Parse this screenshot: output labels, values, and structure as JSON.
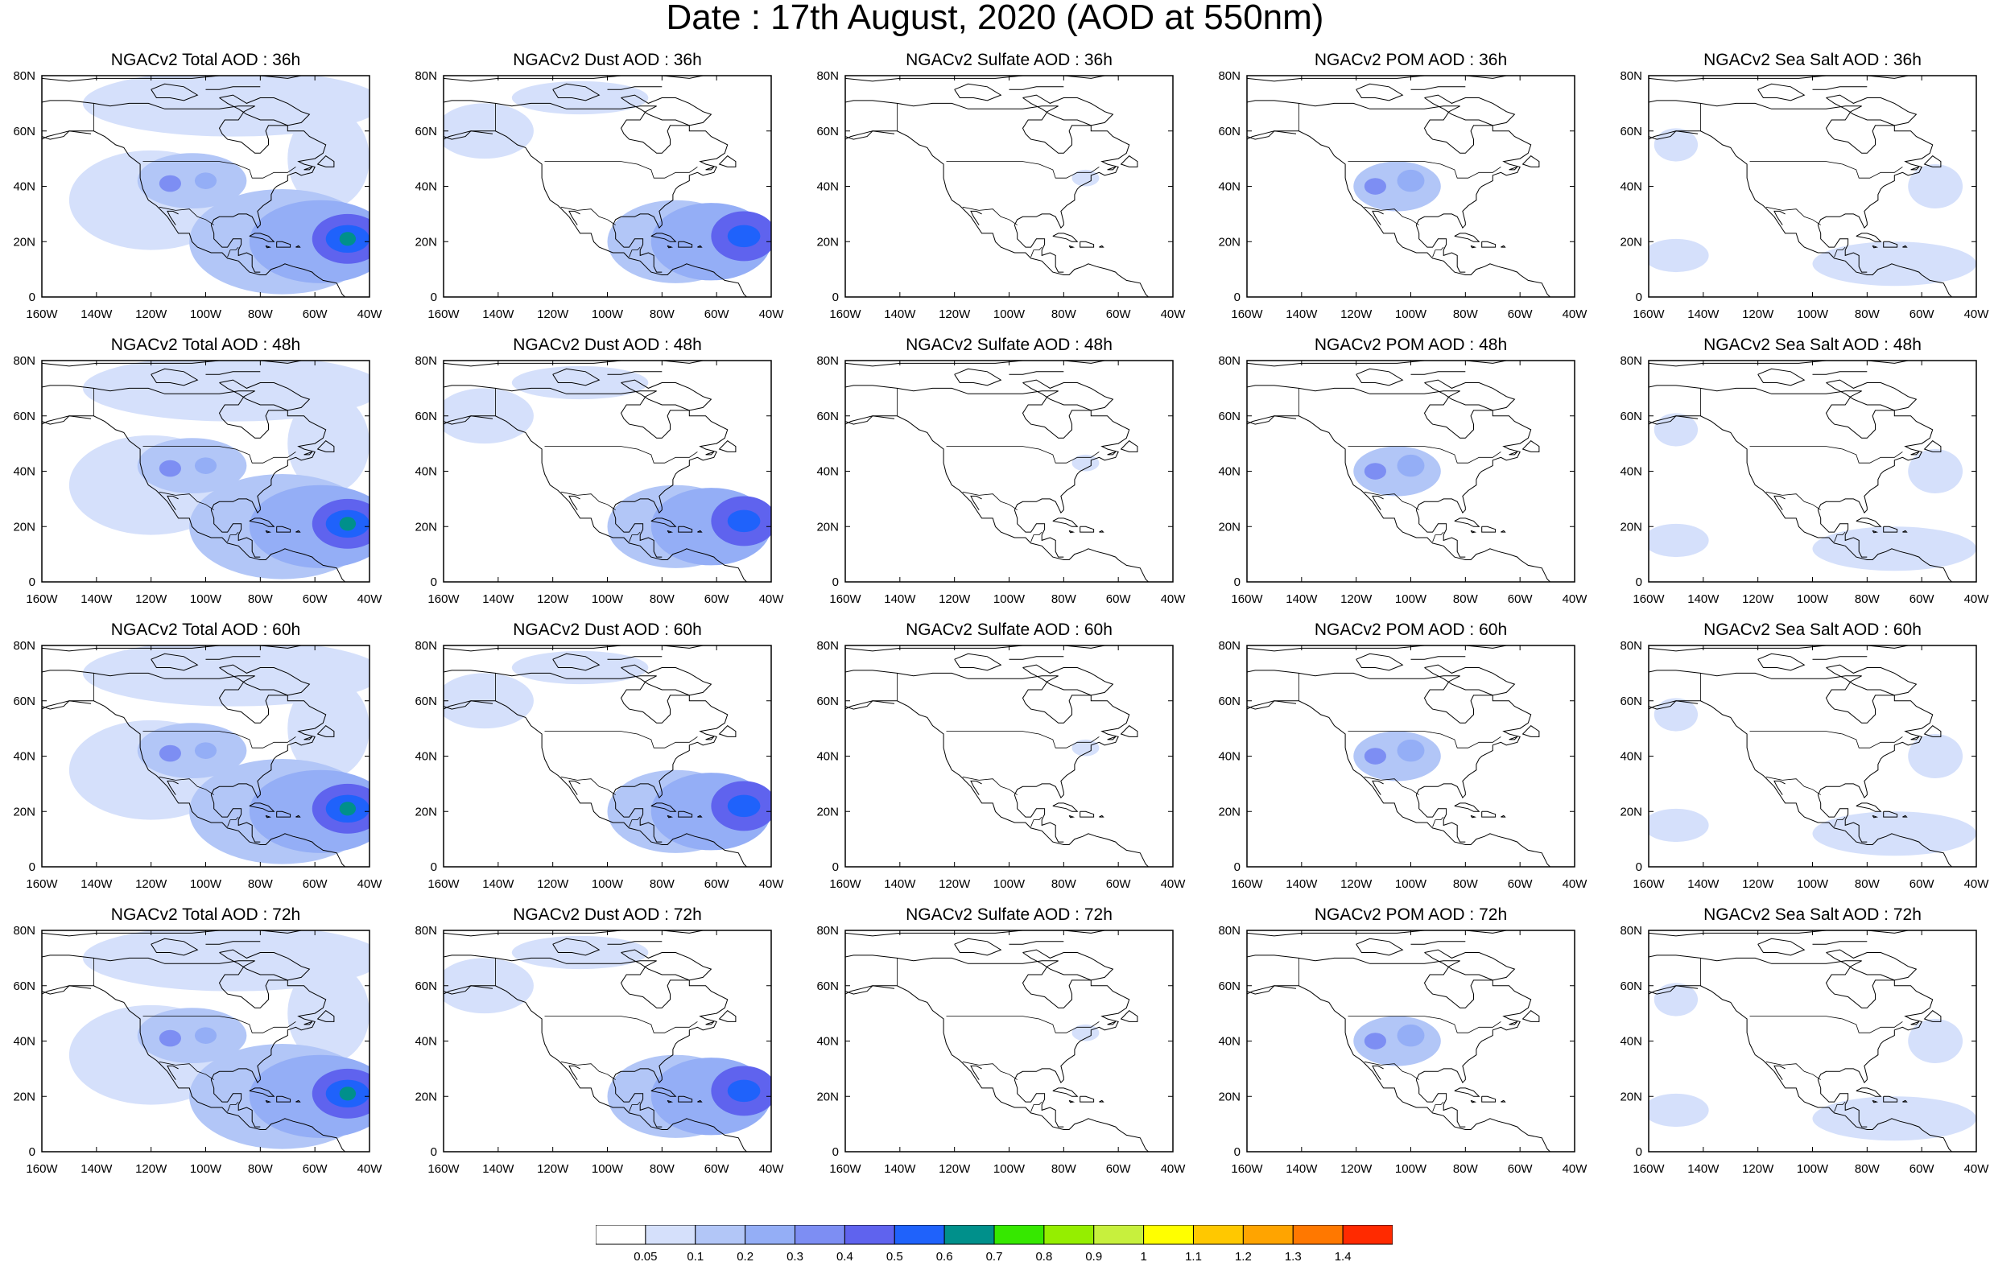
{
  "figure": {
    "title": "Date : 17th August, 2020 (AOD at 550nm)"
  },
  "map": {
    "lon_range": [
      -160,
      -40
    ],
    "lat_range": [
      0,
      80
    ],
    "lon_ticks": [
      "160W",
      "140W",
      "120W",
      "100W",
      "80W",
      "60W",
      "40W"
    ],
    "lat_ticks": [
      "0",
      "20N",
      "40N",
      "60N",
      "80N"
    ],
    "coastline_color": "#000000",
    "no_data_color": "#ffffff"
  },
  "panels": [
    {
      "title": "NGACv2 Total AOD : 36h",
      "field": "total",
      "forecast_hour": 36
    },
    {
      "title": "NGACv2 Dust AOD : 36h",
      "field": "dust",
      "forecast_hour": 36
    },
    {
      "title": "NGACv2 Sulfate AOD : 36h",
      "field": "sulfate",
      "forecast_hour": 36
    },
    {
      "title": "NGACv2 POM AOD : 36h",
      "field": "pom",
      "forecast_hour": 36
    },
    {
      "title": "NGACv2 Sea Salt AOD : 36h",
      "field": "seasalt",
      "forecast_hour": 36
    },
    {
      "title": "NGACv2 Total AOD : 48h",
      "field": "total",
      "forecast_hour": 48
    },
    {
      "title": "NGACv2 Dust AOD : 48h",
      "field": "dust",
      "forecast_hour": 48
    },
    {
      "title": "NGACv2 Sulfate AOD : 48h",
      "field": "sulfate",
      "forecast_hour": 48
    },
    {
      "title": "NGACv2 POM AOD : 48h",
      "field": "pom",
      "forecast_hour": 48
    },
    {
      "title": "NGACv2 Sea Salt AOD : 48h",
      "field": "seasalt",
      "forecast_hour": 48
    },
    {
      "title": "NGACv2 Total AOD : 60h",
      "field": "total",
      "forecast_hour": 60
    },
    {
      "title": "NGACv2 Dust AOD : 60h",
      "field": "dust",
      "forecast_hour": 60
    },
    {
      "title": "NGACv2 Sulfate AOD : 60h",
      "field": "sulfate",
      "forecast_hour": 60
    },
    {
      "title": "NGACv2 POM AOD : 60h",
      "field": "pom",
      "forecast_hour": 60
    },
    {
      "title": "NGACv2 Sea Salt AOD : 60h",
      "field": "seasalt",
      "forecast_hour": 60
    },
    {
      "title": "NGACv2 Total AOD : 72h",
      "field": "total",
      "forecast_hour": 72
    },
    {
      "title": "NGACv2 Dust AOD : 72h",
      "field": "dust",
      "forecast_hour": 72
    },
    {
      "title": "NGACv2 Sulfate AOD : 72h",
      "field": "sulfate",
      "forecast_hour": 72
    },
    {
      "title": "NGACv2 POM AOD : 72h",
      "field": "pom",
      "forecast_hour": 72
    },
    {
      "title": "NGACv2 Sea Salt  AOD : 72h",
      "field": "seasalt",
      "forecast_hour": 72
    }
  ],
  "colorbar": {
    "labels": [
      "0.05",
      "0.1",
      "0.2",
      "0.3",
      "0.4",
      "0.5",
      "0.6",
      "0.7",
      "0.8",
      "0.9",
      "1",
      "1.1",
      "1.2",
      "1.3",
      "1.4"
    ],
    "colors": [
      "#ffffff",
      "#d5e0fb",
      "#b2c6f7",
      "#94aef6",
      "#7d8ef3",
      "#5f63ee",
      "#1f62fb",
      "#00908b",
      "#36e800",
      "#95ee00",
      "#c7f03d",
      "#ffff00",
      "#ffc800",
      "#ffa400",
      "#ff7800",
      "#ff2a00"
    ]
  },
  "features": {
    "total": [
      {
        "lon": -48,
        "lat": 21,
        "rx": 13,
        "ry": 9,
        "level": 5
      },
      {
        "lon": -48,
        "lat": 21,
        "rx": 8,
        "ry": 5,
        "level": 6
      },
      {
        "lon": -48,
        "lat": 21,
        "rx": 3,
        "ry": 2.5,
        "level": 7
      },
      {
        "lon": -58,
        "lat": 20,
        "rx": 26,
        "ry": 15,
        "level": 3
      },
      {
        "lon": -72,
        "lat": 20,
        "rx": 34,
        "ry": 19,
        "level": 2
      },
      {
        "lon": -105,
        "lat": 42,
        "rx": 20,
        "ry": 10,
        "level": 2
      },
      {
        "lon": -113,
        "lat": 41,
        "rx": 4,
        "ry": 3,
        "level": 4
      },
      {
        "lon": -100,
        "lat": 42,
        "rx": 4,
        "ry": 3,
        "level": 3
      },
      {
        "lon": -120,
        "lat": 35,
        "rx": 30,
        "ry": 18,
        "level": 1
      },
      {
        "lon": -90,
        "lat": 70,
        "rx": 55,
        "ry": 12,
        "level": 1
      },
      {
        "lon": -55,
        "lat": 50,
        "rx": 15,
        "ry": 18,
        "level": 1
      }
    ],
    "dust": [
      {
        "lon": -50,
        "lat": 22,
        "rx": 12,
        "ry": 9,
        "level": 5
      },
      {
        "lon": -50,
        "lat": 22,
        "rx": 6,
        "ry": 4,
        "level": 6
      },
      {
        "lon": -62,
        "lat": 20,
        "rx": 22,
        "ry": 14,
        "level": 3
      },
      {
        "lon": -75,
        "lat": 20,
        "rx": 25,
        "ry": 15,
        "level": 2
      },
      {
        "lon": -145,
        "lat": 60,
        "rx": 18,
        "ry": 10,
        "level": 1
      },
      {
        "lon": -110,
        "lat": 72,
        "rx": 25,
        "ry": 6,
        "level": 1
      }
    ],
    "sulfate": [
      {
        "lon": -72,
        "lat": 43,
        "rx": 5,
        "ry": 3,
        "level": 1
      }
    ],
    "pom": [
      {
        "lon": -105,
        "lat": 40,
        "rx": 16,
        "ry": 9,
        "level": 2
      },
      {
        "lon": -113,
        "lat": 40,
        "rx": 4,
        "ry": 3,
        "level": 4
      },
      {
        "lon": -100,
        "lat": 42,
        "rx": 5,
        "ry": 4,
        "level": 3
      }
    ],
    "seasalt": [
      {
        "lon": -150,
        "lat": 15,
        "rx": 12,
        "ry": 6,
        "level": 1
      },
      {
        "lon": -70,
        "lat": 12,
        "rx": 30,
        "ry": 8,
        "level": 1
      },
      {
        "lon": -55,
        "lat": 40,
        "rx": 10,
        "ry": 8,
        "level": 1
      },
      {
        "lon": -150,
        "lat": 55,
        "rx": 8,
        "ry": 6,
        "level": 1
      }
    ]
  }
}
